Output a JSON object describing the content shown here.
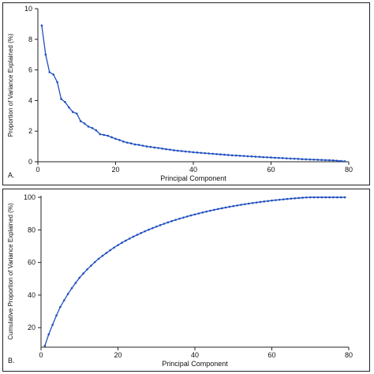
{
  "chart_data": [
    {
      "type": "line",
      "panel_label": "A.",
      "title": "",
      "xlabel": "Principal Component",
      "ylabel": "Proportion of Variance Explained (%)",
      "xlim": [
        0,
        80
      ],
      "ylim": [
        0,
        10
      ],
      "xticks": [
        0,
        20,
        40,
        60,
        80
      ],
      "yticks": [
        0,
        2,
        4,
        6,
        8,
        10
      ],
      "grid": false,
      "color": "#1f4fbf",
      "x": [
        1,
        2,
        3,
        4,
        5,
        6,
        7,
        8,
        9,
        10,
        11,
        12,
        13,
        14,
        15,
        16,
        17,
        18,
        19,
        20,
        21,
        22,
        23,
        24,
        25,
        26,
        27,
        28,
        29,
        30,
        31,
        32,
        33,
        34,
        35,
        36,
        37,
        38,
        39,
        40,
        41,
        42,
        43,
        44,
        45,
        46,
        47,
        48,
        49,
        50,
        51,
        52,
        53,
        54,
        55,
        56,
        57,
        58,
        59,
        60,
        61,
        62,
        63,
        64,
        65,
        66,
        67,
        68,
        69,
        70,
        71,
        72,
        73,
        74,
        75,
        76,
        77,
        78,
        79
      ],
      "values": [
        8.9,
        7.0,
        5.85,
        5.7,
        5.2,
        4.1,
        3.9,
        3.55,
        3.25,
        3.15,
        2.65,
        2.5,
        2.3,
        2.2,
        2.05,
        1.8,
        1.75,
        1.7,
        1.6,
        1.5,
        1.42,
        1.32,
        1.25,
        1.2,
        1.13,
        1.1,
        1.05,
        1.0,
        0.97,
        0.93,
        0.9,
        0.86,
        0.82,
        0.79,
        0.75,
        0.72,
        0.7,
        0.67,
        0.65,
        0.62,
        0.6,
        0.58,
        0.56,
        0.54,
        0.52,
        0.5,
        0.48,
        0.46,
        0.44,
        0.42,
        0.41,
        0.39,
        0.38,
        0.36,
        0.35,
        0.33,
        0.32,
        0.3,
        0.29,
        0.28,
        0.26,
        0.25,
        0.24,
        0.22,
        0.21,
        0.2,
        0.19,
        0.17,
        0.16,
        0.15,
        0.14,
        0.13,
        0.12,
        0.11,
        0.1,
        0.09,
        0.07,
        0.05,
        0.03
      ]
    },
    {
      "type": "line",
      "panel_label": "B.",
      "title": "",
      "xlabel": "Principal Component",
      "ylabel": "Cumulative Proportion of Variance Explained (%)",
      "xlim": [
        0,
        80
      ],
      "ylim": [
        8,
        101
      ],
      "xticks": [
        0,
        20,
        40,
        60,
        80
      ],
      "yticks": [
        20,
        40,
        60,
        80,
        100
      ],
      "grid": false,
      "color": "#1f4fbf",
      "x": [
        1,
        2,
        3,
        4,
        5,
        6,
        7,
        8,
        9,
        10,
        11,
        12,
        13,
        14,
        15,
        16,
        17,
        18,
        19,
        20,
        21,
        22,
        23,
        24,
        25,
        26,
        27,
        28,
        29,
        30,
        31,
        32,
        33,
        34,
        35,
        36,
        37,
        38,
        39,
        40,
        41,
        42,
        43,
        44,
        45,
        46,
        47,
        48,
        49,
        50,
        51,
        52,
        53,
        54,
        55,
        56,
        57,
        58,
        59,
        60,
        61,
        62,
        63,
        64,
        65,
        66,
        67,
        68,
        69,
        70,
        71,
        72,
        73,
        74,
        75,
        76,
        77,
        78,
        79
      ],
      "values": [
        8.9,
        15.9,
        21.75,
        27.45,
        32.65,
        36.75,
        40.65,
        44.2,
        47.45,
        50.6,
        53.25,
        55.75,
        58.05,
        60.25,
        62.3,
        64.1,
        65.85,
        67.55,
        69.15,
        70.65,
        72.07,
        73.39,
        74.64,
        75.84,
        76.97,
        78.07,
        79.12,
        80.12,
        81.09,
        82.02,
        82.92,
        83.78,
        84.6,
        85.39,
        86.14,
        86.86,
        87.56,
        88.23,
        88.88,
        89.5,
        90.1,
        90.68,
        91.24,
        91.78,
        92.3,
        92.8,
        93.28,
        93.74,
        94.18,
        94.6,
        95.01,
        95.4,
        95.78,
        96.14,
        96.49,
        96.82,
        97.14,
        97.44,
        97.73,
        98.01,
        98.27,
        98.52,
        98.76,
        98.98,
        99.19,
        99.39,
        99.58,
        99.75,
        99.91,
        100.0,
        100.0,
        100.0,
        100.0,
        100.0,
        100.0,
        100.0,
        100.0,
        100.0,
        100.0
      ]
    }
  ]
}
